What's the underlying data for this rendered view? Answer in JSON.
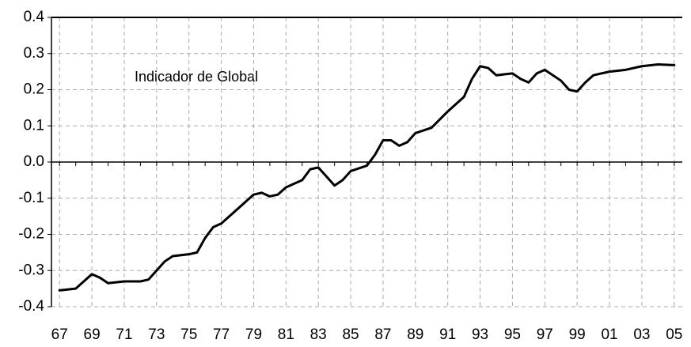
{
  "chart_data": {
    "type": "line",
    "annotation": "Indicador de Global",
    "x": [
      1967,
      1968,
      1968.5,
      1969,
      1969.5,
      1970,
      1971,
      1972,
      1972.5,
      1973,
      1973.5,
      1974,
      1975,
      1975.5,
      1976,
      1976.5,
      1977,
      1978,
      1979,
      1979.5,
      1980,
      1980.5,
      1981,
      1982,
      1982.5,
      1983,
      1983.5,
      1984,
      1984.5,
      1985,
      1986,
      1986.5,
      1987,
      1987.5,
      1988,
      1988.5,
      1989,
      1990,
      1991,
      1992,
      1992.5,
      1993,
      1993.5,
      1994,
      1995,
      1995.5,
      1996,
      1996.5,
      1997,
      1998,
      1998.5,
      1999,
      1999.5,
      2000,
      2001,
      2002,
      2003,
      2004,
      2005
    ],
    "series": [
      {
        "color": "#000000",
        "values": [
          -0.355,
          -0.35,
          -0.33,
          -0.31,
          -0.32,
          -0.335,
          -0.33,
          -0.33,
          -0.325,
          -0.3,
          -0.275,
          -0.26,
          -0.255,
          -0.25,
          -0.21,
          -0.18,
          -0.17,
          -0.13,
          -0.09,
          -0.085,
          -0.095,
          -0.09,
          -0.07,
          -0.05,
          -0.02,
          -0.015,
          -0.04,
          -0.065,
          -0.05,
          -0.025,
          -0.01,
          0.02,
          0.06,
          0.06,
          0.045,
          0.055,
          0.08,
          0.095,
          0.14,
          0.18,
          0.23,
          0.265,
          0.26,
          0.24,
          0.245,
          0.23,
          0.22,
          0.245,
          0.255,
          0.225,
          0.2,
          0.195,
          0.22,
          0.24,
          0.25,
          0.255,
          0.265,
          0.27,
          0.268
        ]
      }
    ],
    "xlim": [
      1966.5,
      2005.5
    ],
    "xticks": [
      {
        "value": 1967,
        "label": "67"
      },
      {
        "value": 1969,
        "label": "69"
      },
      {
        "value": 1971,
        "label": "71"
      },
      {
        "value": 1973,
        "label": "73"
      },
      {
        "value": 1975,
        "label": "75"
      },
      {
        "value": 1977,
        "label": "77"
      },
      {
        "value": 1979,
        "label": "79"
      },
      {
        "value": 1981,
        "label": "81"
      },
      {
        "value": 1983,
        "label": "83"
      },
      {
        "value": 1985,
        "label": "85"
      },
      {
        "value": 1987,
        "label": "87"
      },
      {
        "value": 1989,
        "label": "89"
      },
      {
        "value": 1991,
        "label": "91"
      },
      {
        "value": 1993,
        "label": "93"
      },
      {
        "value": 1995,
        "label": "95"
      },
      {
        "value": 1997,
        "label": "97"
      },
      {
        "value": 1999,
        "label": "99"
      },
      {
        "value": 2001,
        "label": "01"
      },
      {
        "value": 2003,
        "label": "03"
      },
      {
        "value": 2005,
        "label": "05"
      }
    ],
    "ylim": [
      -0.4,
      0.4
    ],
    "yticks": [
      0.4,
      0.3,
      0.2,
      0.1,
      {
        "value": 0,
        "label": "0.0"
      },
      -0.1,
      -0.2,
      -0.3,
      -0.4
    ],
    "grid": true
  }
}
